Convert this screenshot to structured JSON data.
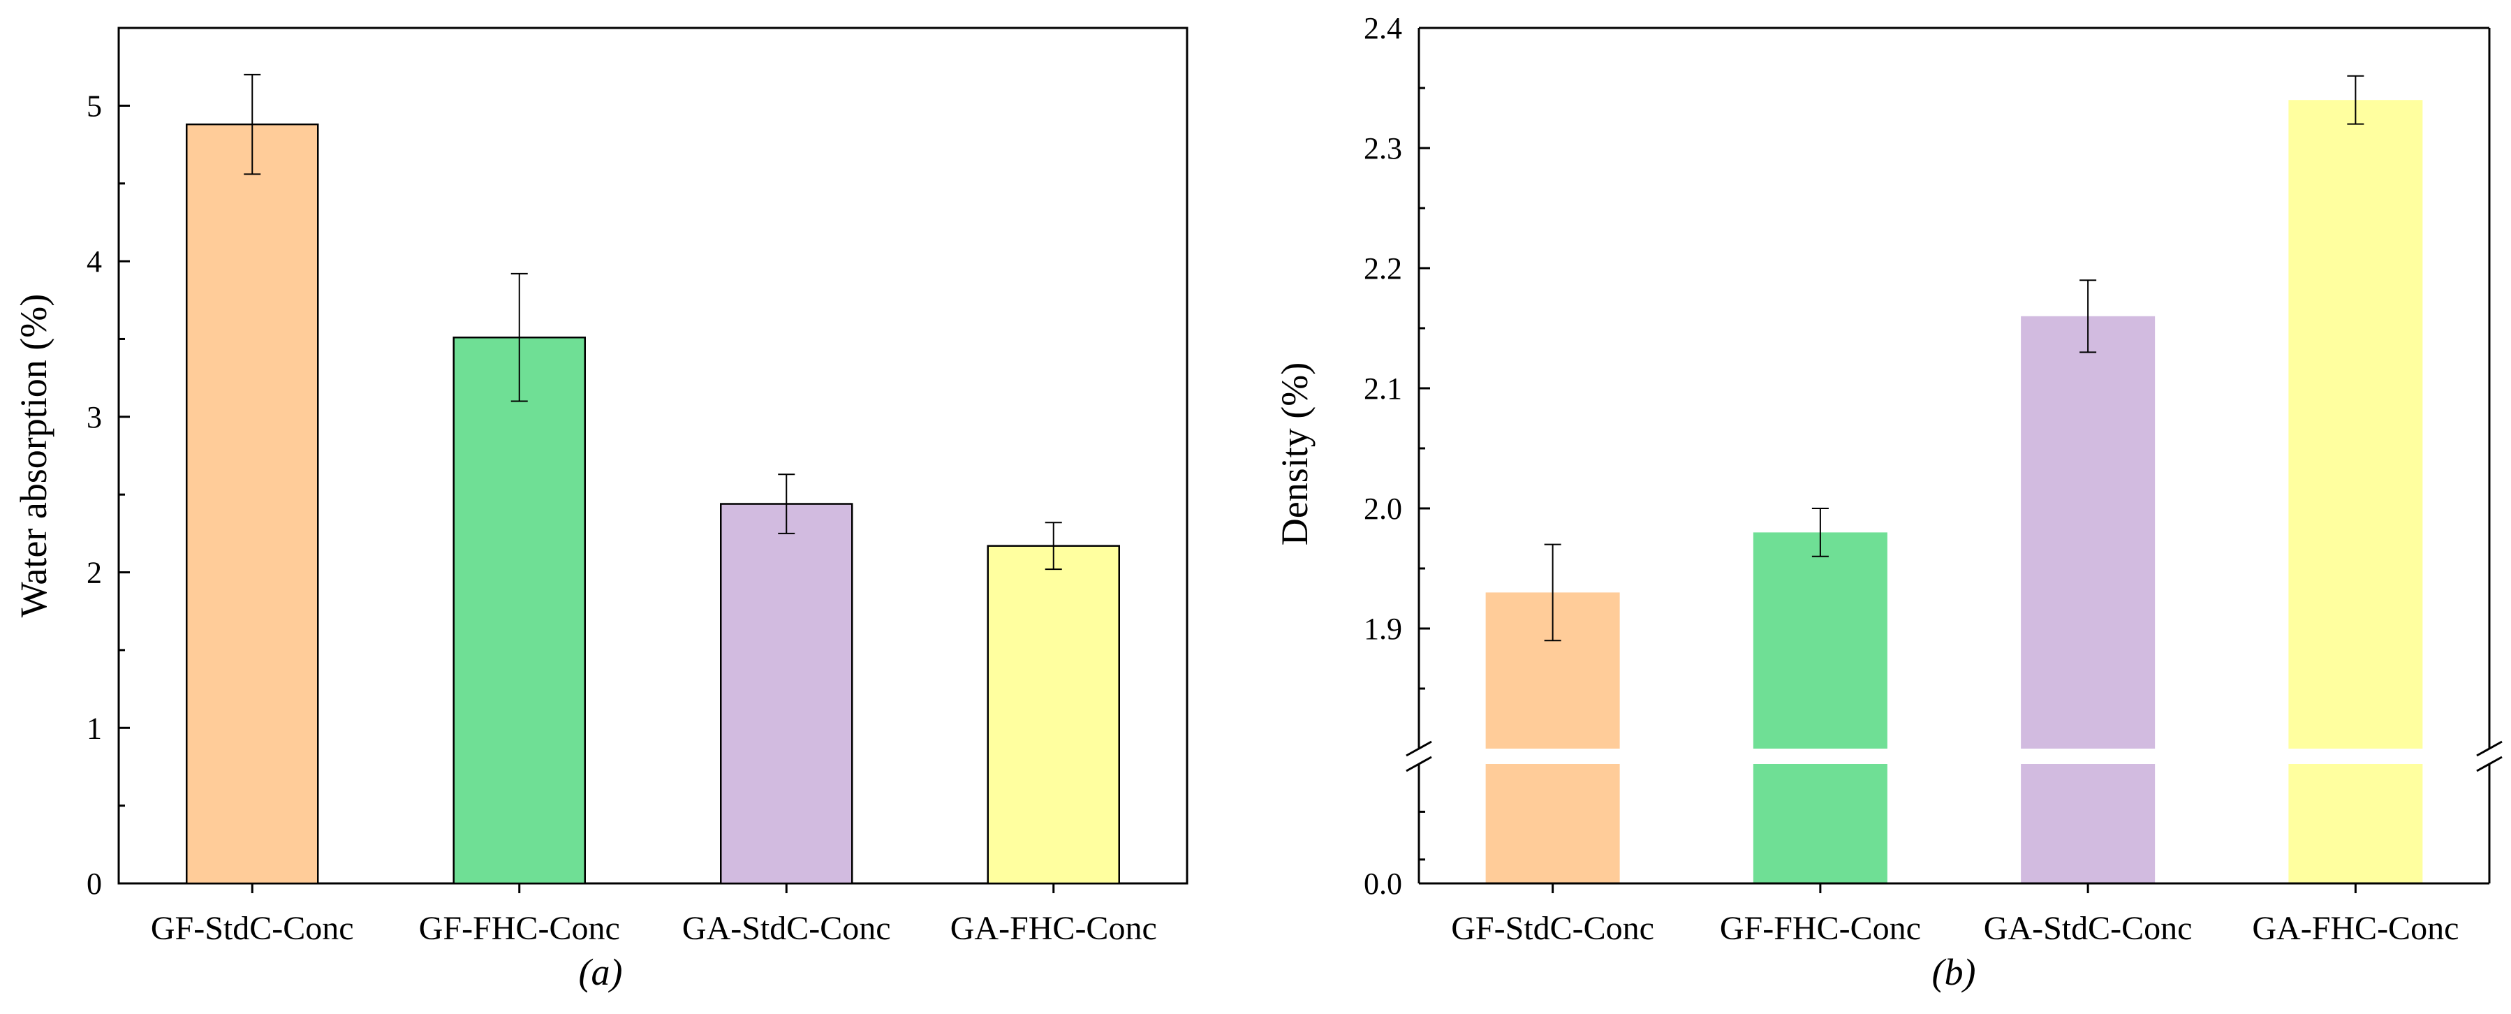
{
  "chart_data": [
    {
      "type": "bar",
      "panel": "(a)",
      "categories": [
        "GF-StdC-Conc",
        "GF-FHC-Conc",
        "GA-StdC-Conc",
        "GA-FHC-Conc"
      ],
      "values": [
        4.88,
        3.51,
        2.44,
        2.17
      ],
      "errors": [
        0.32,
        0.41,
        0.19,
        0.15
      ],
      "colors": [
        "#ffcc99",
        "#6fdf95",
        "#d2bbe0",
        "#ffff9f"
      ],
      "ylabel": "Water absorption (%)",
      "ylim": [
        0,
        5.5
      ],
      "yticks": [
        "0",
        "1",
        "2",
        "3",
        "4",
        "5"
      ],
      "bar_outline": true
    },
    {
      "type": "bar",
      "panel": "(b)",
      "categories": [
        "GF-StdC-Conc",
        "GF-FHC-Conc",
        "GA-StdC-Conc",
        "GA-FHC-Conc"
      ],
      "values": [
        1.93,
        1.98,
        2.16,
        2.34
      ],
      "errors": [
        0.04,
        0.02,
        0.03,
        0.02
      ],
      "colors": [
        "#ffcc99",
        "#6fdf95",
        "#d2bbe0",
        "#ffff9f"
      ],
      "ylabel": "Density (%)",
      "axis_break": [
        0.5,
        1.8
      ],
      "ylim_lower": [
        0,
        0.5
      ],
      "ylim_upper": [
        1.8,
        2.4
      ],
      "yticks_lower": [
        "0.0"
      ],
      "yticks_upper": [
        "1.9",
        "2.0",
        "2.1",
        "2.2",
        "2.3",
        "2.4"
      ],
      "bar_outline": false
    }
  ]
}
